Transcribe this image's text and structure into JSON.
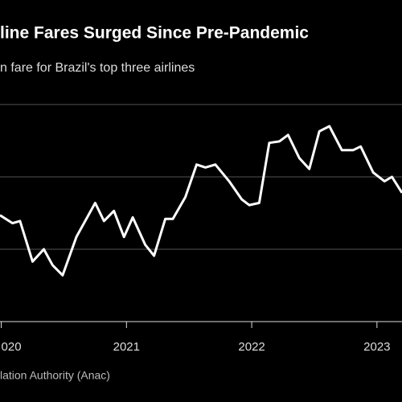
{
  "chart_data": {
    "type": "line",
    "title": "line Fares Surged Since Pre-Pandemic",
    "subtitle": "n fare for Brazil's top three airlines",
    "source": "lation Authority (Anac)",
    "x": [
      2019.99,
      2020.09,
      2020.15,
      2020.25,
      2020.34,
      2020.41,
      2020.49,
      2020.6,
      2020.75,
      2020.82,
      2020.9,
      2020.98,
      2021.05,
      2021.15,
      2021.22,
      2021.31,
      2021.37,
      2021.47,
      2021.56,
      2021.63,
      2021.71,
      2021.82,
      2021.92,
      2021.98,
      2022.06,
      2022.14,
      2022.22,
      2022.29,
      2022.38,
      2022.46,
      2022.54,
      2022.62,
      2022.72,
      2022.81,
      2022.87,
      2022.97,
      2023.06,
      2023.12,
      2023.2
    ],
    "series": [
      {
        "color": "#ffffff",
        "values": [
          1.47,
          1.36,
          1.39,
          0.83,
          1.0,
          0.78,
          0.64,
          1.17,
          1.64,
          1.39,
          1.53,
          1.17,
          1.44,
          1.06,
          0.91,
          1.42,
          1.42,
          1.72,
          2.17,
          2.13,
          2.17,
          1.94,
          1.69,
          1.61,
          1.64,
          2.47,
          2.49,
          2.58,
          2.26,
          2.11,
          2.63,
          2.7,
          2.37,
          2.37,
          2.42,
          2.06,
          1.94,
          2.0,
          1.78
        ]
      }
    ],
    "xlim": [
      2019.99,
      2023.2
    ],
    "xticks": [
      {
        "value": 2020,
        "label": "020"
      },
      2021,
      2022,
      2023
    ],
    "ylim": [
      0,
      3
    ],
    "yticks": [
      0,
      1,
      2,
      3
    ],
    "show_ytick_labels": false,
    "grid": true
  }
}
